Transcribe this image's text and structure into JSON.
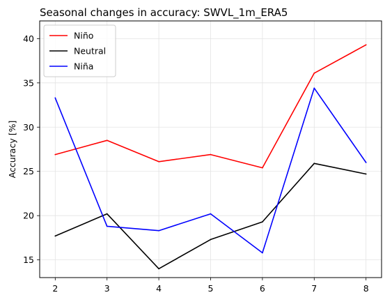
{
  "chart_data": {
    "type": "line",
    "title": "Seasonal changes in accuracy: SWVL_1m_ERA5",
    "xlabel": "",
    "ylabel": "Accuracy [%]",
    "x": [
      2,
      3,
      4,
      5,
      6,
      7,
      8
    ],
    "xlim": [
      1.7,
      8.3
    ],
    "ylim": [
      13.0,
      42.0
    ],
    "xticks": [
      2,
      3,
      4,
      5,
      6,
      7,
      8
    ],
    "yticks": [
      15,
      20,
      25,
      30,
      35,
      40
    ],
    "grid": true,
    "legend_position": "top-left",
    "series": [
      {
        "name": "Niño",
        "color": "#ff0000",
        "values": [
          26.9,
          28.5,
          26.1,
          26.9,
          25.4,
          36.1,
          39.3
        ]
      },
      {
        "name": "Neutral",
        "color": "#000000",
        "values": [
          17.7,
          20.2,
          14.0,
          17.3,
          19.3,
          25.9,
          24.7
        ]
      },
      {
        "name": "Niña",
        "color": "#0000ff",
        "values": [
          33.3,
          18.8,
          18.3,
          20.2,
          15.8,
          34.4,
          26.0
        ]
      }
    ]
  }
}
